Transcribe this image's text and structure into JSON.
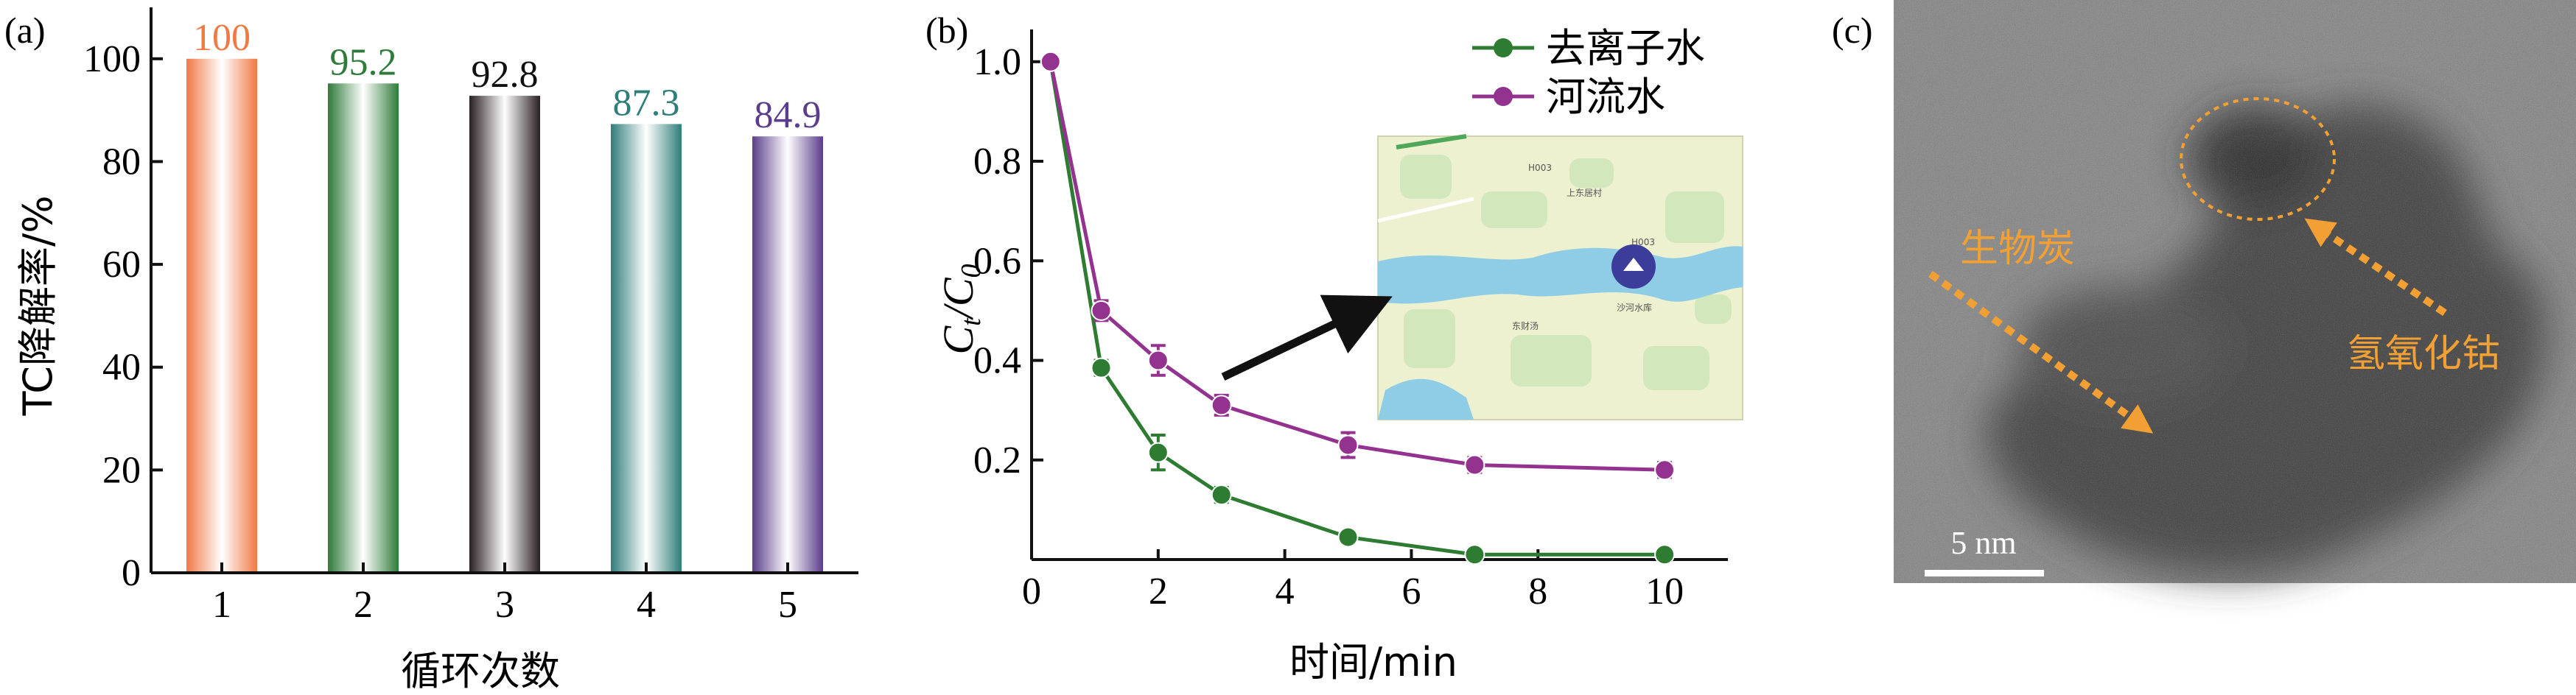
{
  "chart_data": [
    {
      "type": "bar",
      "panel_label": "(a)",
      "categories": [
        "1",
        "2",
        "3",
        "4",
        "5"
      ],
      "values": [
        100,
        95.2,
        92.8,
        87.3,
        84.9
      ],
      "value_labels": [
        "100",
        "95.2",
        "92.8",
        "87.3",
        "84.9"
      ],
      "bar_colors": [
        "#f07a45",
        "#2e7b3a",
        "#2a1f22",
        "#2e7e7a",
        "#5a3d8c"
      ],
      "xlabel": "循环次数",
      "ylabel": "TC降解率/%",
      "ylim": [
        0,
        110
      ],
      "yticks": [
        "0",
        "20",
        "40",
        "60",
        "80",
        "100"
      ],
      "grid": false
    },
    {
      "type": "line",
      "panel_label": "(b)",
      "xlabel": "时间/min",
      "ylabel_main": "C",
      "ylabel_sub1": "t",
      "ylabel_sep": "/C",
      "ylabel_sub2": "0",
      "xlim": [
        0,
        11
      ],
      "ylim": [
        0,
        1.05
      ],
      "xticks": [
        "0",
        "2",
        "4",
        "6",
        "8",
        "10"
      ],
      "yticks": [
        "0.2",
        "0.4",
        "0.6",
        "0.8",
        "1.0"
      ],
      "legend_position": "top-right",
      "series": [
        {
          "name": "去离子水",
          "color": "#2e7b32",
          "x": [
            0.3,
            1.1,
            2,
            3,
            5,
            7,
            10
          ],
          "y": [
            1.0,
            0.385,
            0.215,
            0.13,
            0.045,
            0.01,
            0.01
          ],
          "err": [
            0,
            0.015,
            0.035,
            0.015,
            0.01,
            0.012,
            0.012
          ]
        },
        {
          "name": "河流水",
          "color": "#93338f",
          "x": [
            0.3,
            1.1,
            2,
            3,
            5,
            7,
            10
          ],
          "y": [
            1.0,
            0.5,
            0.4,
            0.31,
            0.23,
            0.19,
            0.18
          ],
          "err": [
            0,
            0.02,
            0.03,
            0.02,
            0.025,
            0.015,
            0.015
          ]
        }
      ],
      "inset": {
        "map_labels": [
          "H003",
          "上东居村",
          "H003",
          "沙河水库",
          "东财汤"
        ]
      }
    },
    {
      "type": "image",
      "panel_label": "(c)",
      "annotations": [
        "生物炭",
        "氢氧化钴"
      ],
      "scale_bar_label": "5 nm",
      "annotation_color": "#f2a033"
    }
  ]
}
